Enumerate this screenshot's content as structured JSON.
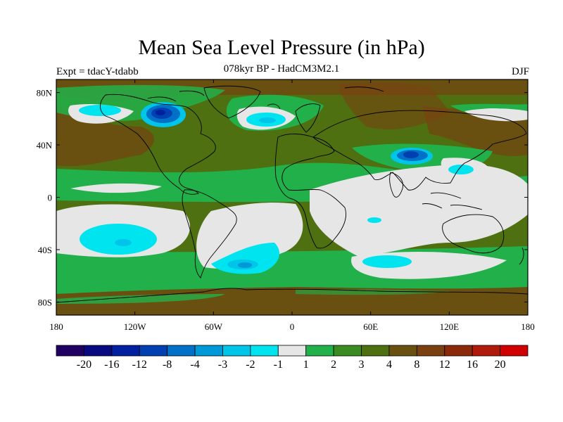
{
  "title": "Mean Sea Level Pressure (in hPa)",
  "subtitle": "078kyr BP - HadCM3M2.1",
  "experiment": "Expt = tdacY-tdabb",
  "season": "DJF",
  "chart_data": {
    "type": "map",
    "projection": "cylindrical-equidistant",
    "variable": "mean sea level pressure difference",
    "units": "hPa",
    "lon_range": [
      -180,
      180
    ],
    "lat_range": [
      -90,
      90
    ],
    "x_ticks": [
      {
        "lon": -180,
        "label": "180"
      },
      {
        "lon": -120,
        "label": "120W"
      },
      {
        "lon": -60,
        "label": "60W"
      },
      {
        "lon": 0,
        "label": "0"
      },
      {
        "lon": 60,
        "label": "60E"
      },
      {
        "lon": 120,
        "label": "120E"
      },
      {
        "lon": 180,
        "label": "180"
      }
    ],
    "y_ticks": [
      {
        "lat": 80,
        "label": "80N"
      },
      {
        "lat": 40,
        "label": "40N"
      },
      {
        "lat": 0,
        "label": "0"
      },
      {
        "lat": -40,
        "label": "40S"
      },
      {
        "lat": -80,
        "label": "80S"
      }
    ],
    "colorbar": {
      "colors": [
        "#200060",
        "#0a0a80",
        "#0020a0",
        "#0040b0",
        "#0070c8",
        "#0099d8",
        "#00c4e8",
        "#00e4f0",
        "#e6e6e6",
        "#22b04a",
        "#3a8c22",
        "#4e7010",
        "#6a5010",
        "#7a4010",
        "#8a2a0a",
        "#b01a0a",
        "#d00000"
      ],
      "levels": [
        "-20",
        "-16",
        "-12",
        "-8",
        "-4",
        "-3",
        "-2",
        "-1",
        "1",
        "2",
        "3",
        "4",
        "8",
        "12",
        "16",
        "20"
      ]
    },
    "regions": [
      {
        "name": "aleutian-high-north-pacific",
        "class": "8",
        "lon": -160,
        "lat": 55
      },
      {
        "name": "canada-low",
        "class": "-8",
        "lon": -95,
        "lat": 72
      },
      {
        "name": "greenland-sea-low",
        "class": "-2",
        "lon": -15,
        "lat": 60
      },
      {
        "name": "tibet-low",
        "class": "-4",
        "lon": 90,
        "lat": 32
      },
      {
        "name": "south-pacific-low",
        "class": "-2",
        "lon": -125,
        "lat": -33
      },
      {
        "name": "south-atlantic-low",
        "class": "-3",
        "lon": -35,
        "lat": -52
      },
      {
        "name": "south-indian-low",
        "class": "-2",
        "lon": 60,
        "lat": -50
      },
      {
        "name": "tropical-atlantic-indian",
        "class": "-1",
        "lon": 20,
        "lat": -25
      },
      {
        "name": "southern-ocean-ring",
        "class": "2",
        "lon": 0,
        "lat": -60
      },
      {
        "name": "antarctica",
        "class": "8",
        "lon": 0,
        "lat": -82
      }
    ]
  }
}
